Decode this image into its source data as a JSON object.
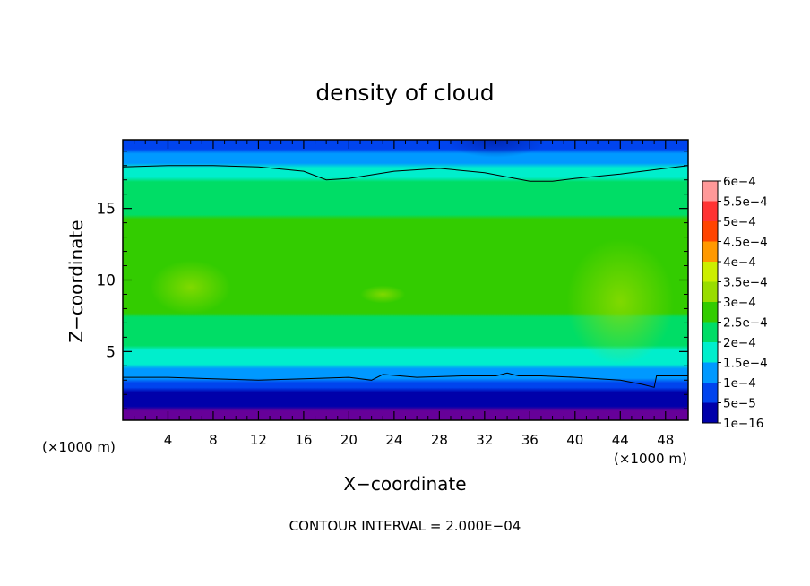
{
  "chart_data": {
    "type": "heatmap",
    "title": "density of cloud",
    "xlabel": "X−coordinate",
    "ylabel": "Z−coordinate",
    "x_unit_label_left": "(×1000 m)",
    "x_unit_label_right": "(×1000 m)",
    "footer": "CONTOUR INTERVAL = 2.000E−04",
    "xlim": [
      0,
      50
    ],
    "ylim": [
      0.2,
      19.8
    ],
    "x_ticks": [
      4,
      8,
      12,
      16,
      20,
      24,
      28,
      32,
      36,
      40,
      44,
      48
    ],
    "x_tick_labels": [
      "4",
      "8",
      "12",
      "16",
      "20",
      "24",
      "28",
      "32",
      "36",
      "40",
      "44",
      "48"
    ],
    "y_ticks": [
      5,
      10,
      15
    ],
    "y_tick_labels": [
      "5",
      "10",
      "15"
    ],
    "colorbar": {
      "labels": [
        "6e−4",
        "5.5e−4",
        "5e−4",
        "4.5e−4",
        "4e−4",
        "3.5e−4",
        "3e−4",
        "2.5e−4",
        "2e−4",
        "1.5e−4",
        "1e−4",
        "5e−5",
        "1e−16"
      ],
      "values": [
        0.0006,
        0.00055,
        0.0005,
        0.00045,
        0.0004,
        0.00035,
        0.0003,
        0.00025,
        0.0002,
        0.00015,
        0.0001,
        5e-05,
        1e-16
      ],
      "colors": [
        "#ff9999",
        "#ff3333",
        "#ff4400",
        "#ff9900",
        "#ccee00",
        "#99dd00",
        "#33cc00",
        "#00dd66",
        "#00eecc",
        "#0099ff",
        "#0044ee",
        "#0000aa",
        "#660099"
      ]
    },
    "vertical_profile": [
      {
        "z": 0.2,
        "density": 1e-16
      },
      {
        "z": 0.9,
        "density": 5e-05
      },
      {
        "z": 1.5,
        "density": 6e-05
      },
      {
        "z": 2.3,
        "density": 0.0001
      },
      {
        "z": 3.0,
        "density": 0.00015
      },
      {
        "z": 4.0,
        "density": 0.0002
      },
      {
        "z": 5.0,
        "density": 0.00024
      },
      {
        "z": 6.5,
        "density": 0.00028
      },
      {
        "z": 8.5,
        "density": 0.00032
      },
      {
        "z": 10.5,
        "density": 0.00033
      },
      {
        "z": 12.5,
        "density": 0.00032
      },
      {
        "z": 14.5,
        "density": 0.0003
      },
      {
        "z": 16.5,
        "density": 0.00027
      },
      {
        "z": 17.8,
        "density": 0.00022
      },
      {
        "z": 18.5,
        "density": 0.00018
      },
      {
        "z": 19.2,
        "density": 0.00014
      },
      {
        "z": 19.8,
        "density": 0.00012
      }
    ],
    "contour_lines": [
      {
        "x": [
          0,
          4,
          8,
          12,
          16,
          18,
          20,
          24,
          28,
          32,
          36,
          38,
          40,
          44,
          48,
          50
        ],
        "z": [
          17.9,
          18.0,
          18.0,
          17.9,
          17.6,
          17.0,
          17.1,
          17.6,
          17.8,
          17.5,
          16.9,
          16.9,
          17.1,
          17.4,
          17.8,
          18.0
        ]
      },
      {
        "x": [
          0,
          4,
          8,
          12,
          16,
          20,
          22,
          23,
          26,
          30,
          33,
          34,
          35,
          37,
          40,
          44,
          46,
          47,
          47.2,
          48,
          50
        ],
        "z": [
          3.2,
          3.2,
          3.1,
          3.0,
          3.1,
          3.2,
          3.0,
          3.4,
          3.2,
          3.3,
          3.3,
          3.5,
          3.3,
          3.3,
          3.2,
          3.0,
          2.7,
          2.5,
          3.3,
          3.3,
          3.3
        ]
      }
    ],
    "grid": false,
    "legend_placement": "right"
  }
}
